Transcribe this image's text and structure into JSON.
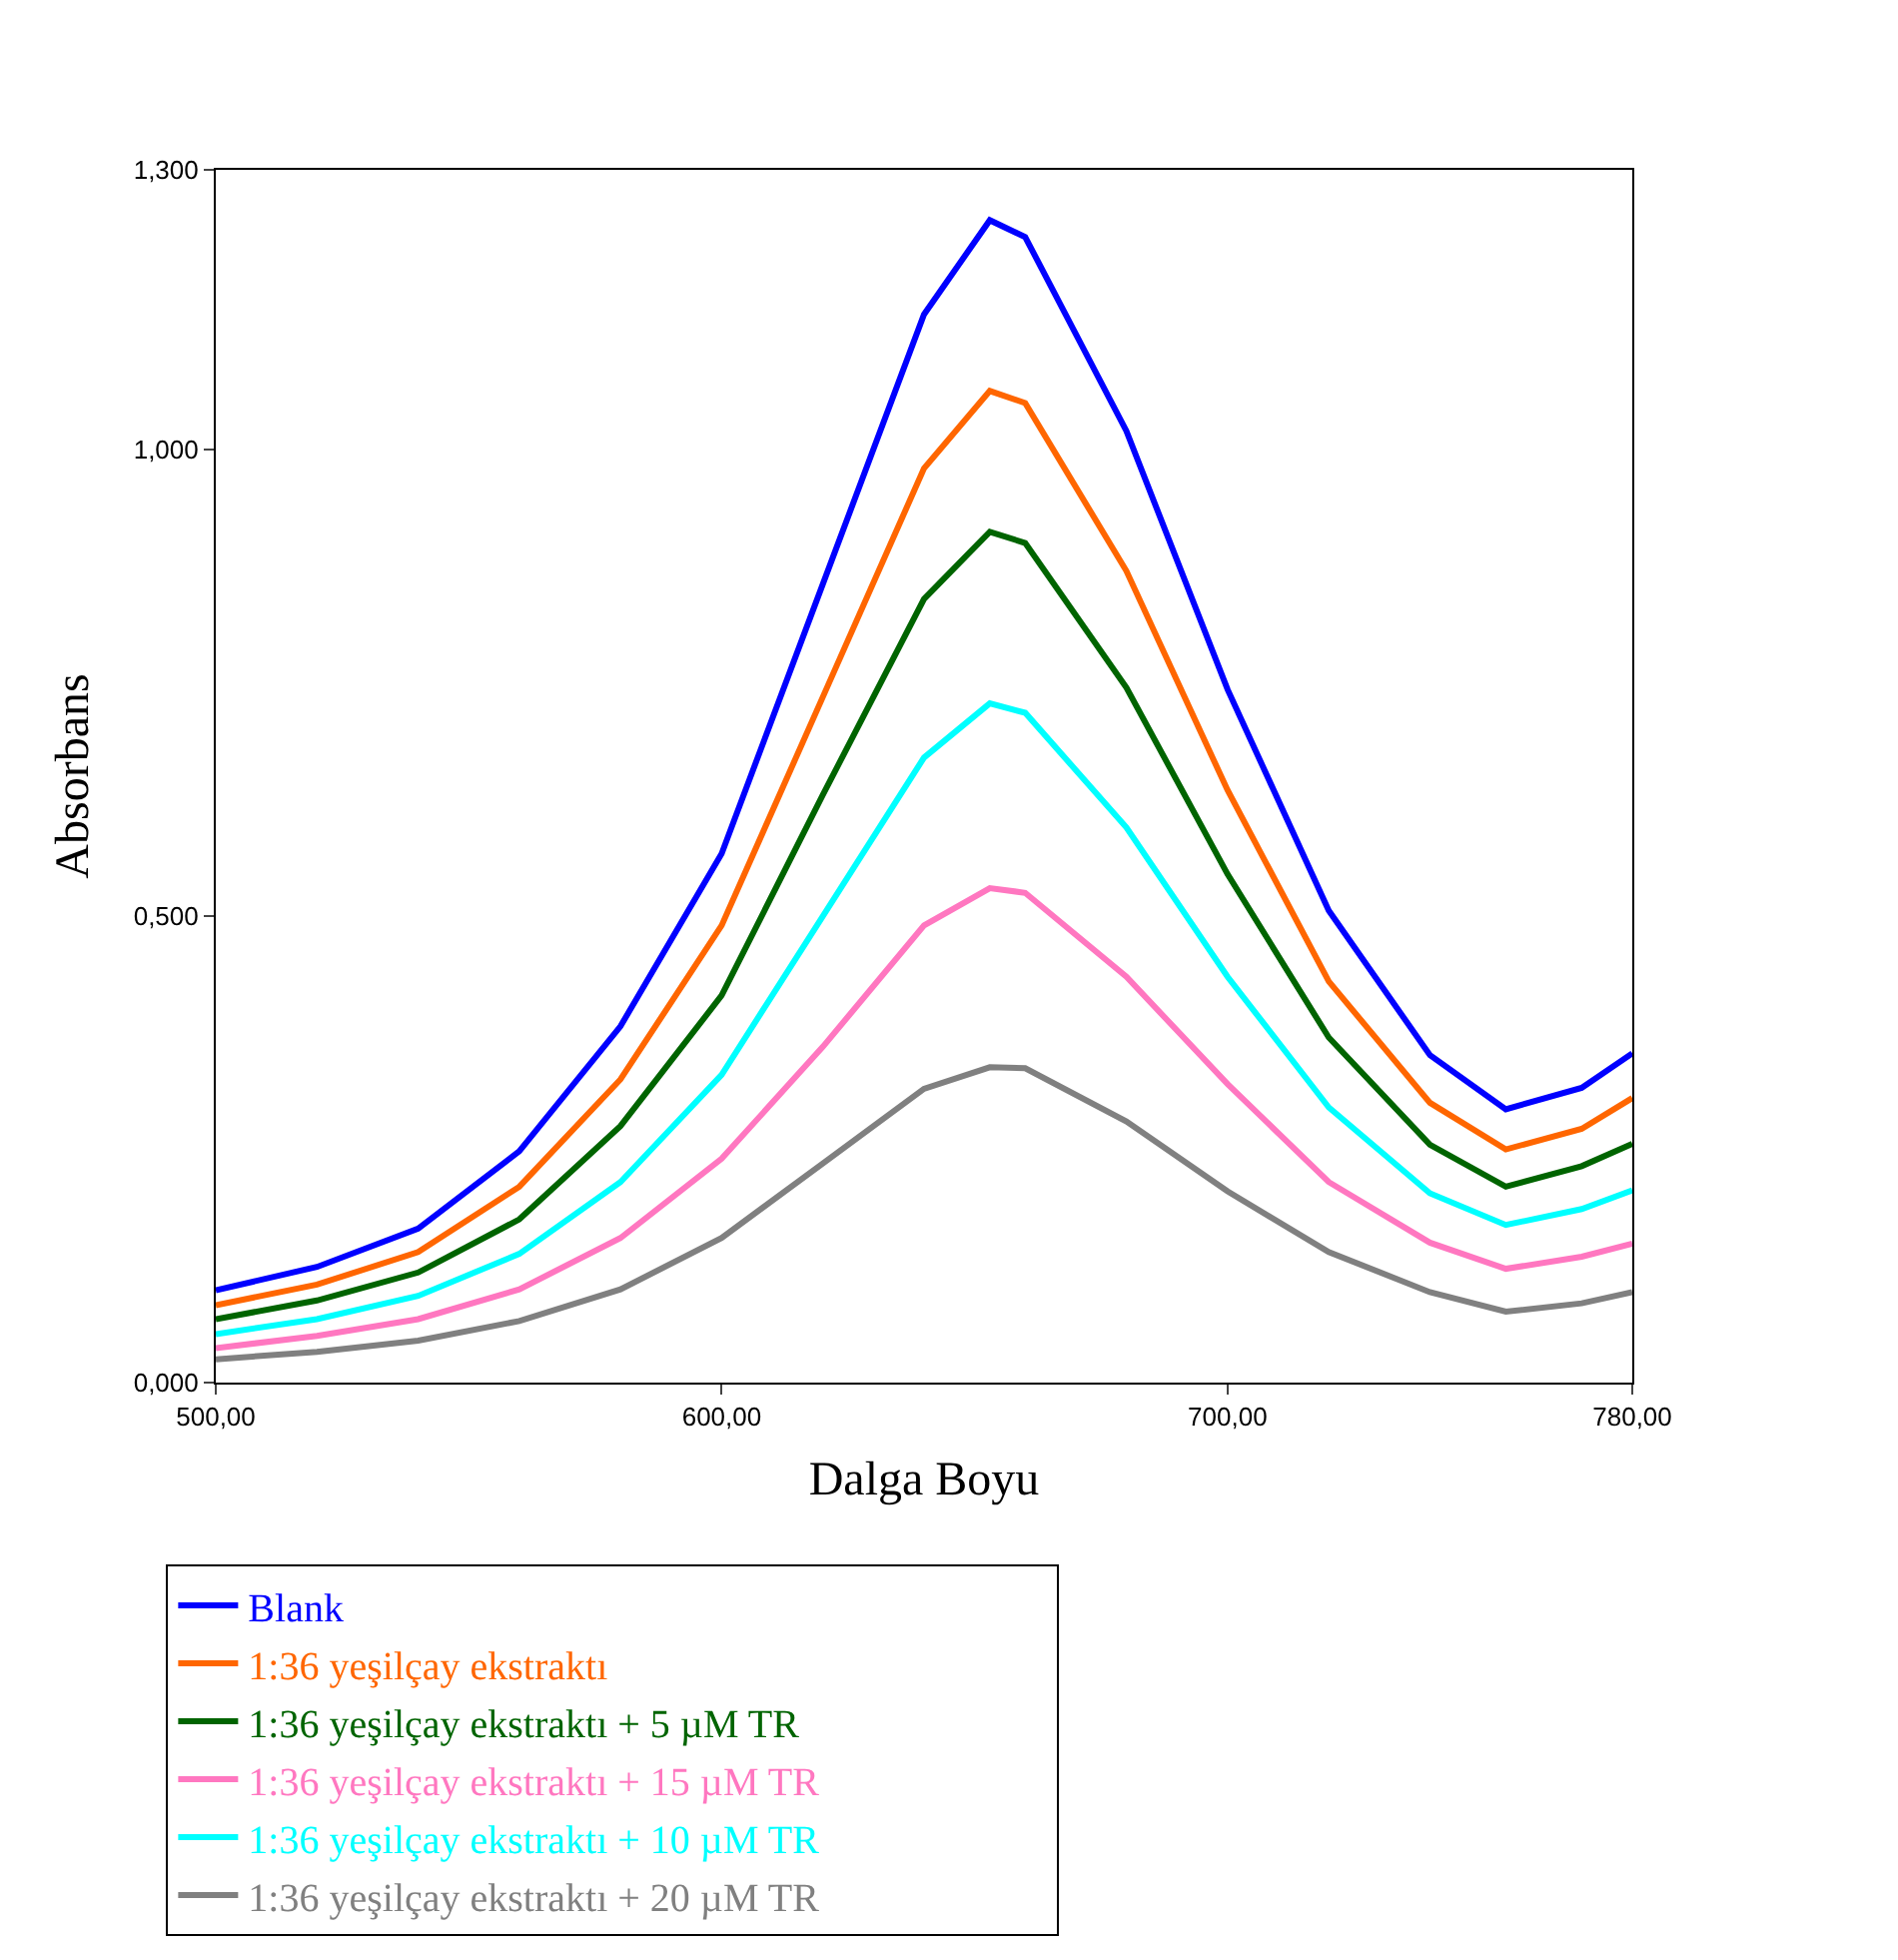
{
  "chart_data": {
    "type": "line",
    "xlabel": "Dalga Boyu",
    "ylabel": "Absorbans",
    "x": [
      500,
      520,
      540,
      560,
      580,
      600,
      620,
      640,
      653,
      660,
      680,
      700,
      720,
      740,
      755,
      770,
      780
    ],
    "xlim": [
      500,
      780
    ],
    "xticks": [
      {
        "value": 500,
        "label": "500,00"
      },
      {
        "value": 600,
        "label": "600,00"
      },
      {
        "value": 700,
        "label": "700,00"
      },
      {
        "value": 780,
        "label": "780,00"
      }
    ],
    "ylim": [
      0,
      1.3
    ],
    "yticks": [
      {
        "value": 0,
        "label": "0,000"
      },
      {
        "value": 0.5,
        "label": "0,500"
      },
      {
        "value": 1.0,
        "label": "1,000"
      },
      {
        "value": 1.3,
        "label": "1,300"
      }
    ],
    "grid": false,
    "legend": "bottom",
    "marker": "none",
    "line_style": "solid",
    "series": [
      {
        "name": "Blank",
        "color": "#0000ff",
        "values": [
          0.099,
          0.124,
          0.165,
          0.248,
          0.382,
          0.567,
          0.856,
          1.145,
          1.246,
          1.228,
          1.02,
          0.743,
          0.506,
          0.351,
          0.293,
          0.316,
          0.353
        ]
      },
      {
        "name": "1:36 yeşilçay ekstraktı",
        "color": "#ff6600",
        "values": [
          0.083,
          0.105,
          0.14,
          0.21,
          0.325,
          0.49,
          0.735,
          0.98,
          1.063,
          1.05,
          0.87,
          0.635,
          0.43,
          0.3,
          0.25,
          0.272,
          0.305
        ]
      },
      {
        "name": "1:36 yeşilçay ekstraktı + 5 µM TR",
        "color": "#006400",
        "values": [
          0.068,
          0.088,
          0.118,
          0.175,
          0.275,
          0.415,
          0.63,
          0.84,
          0.912,
          0.9,
          0.745,
          0.545,
          0.37,
          0.255,
          0.21,
          0.232,
          0.256
        ]
      },
      {
        "name": "1:36 yeşilçay ekstraktı + 15 µM TR",
        "color": "#ff77c0",
        "values": [
          0.037,
          0.05,
          0.068,
          0.1,
          0.155,
          0.24,
          0.36,
          0.49,
          0.53,
          0.525,
          0.435,
          0.32,
          0.215,
          0.15,
          0.122,
          0.135,
          0.149
        ]
      },
      {
        "name": "1:36 yeşilçay ekstraktı + 10 µM TR",
        "color": "#00ffff",
        "values": [
          0.052,
          0.068,
          0.093,
          0.138,
          0.215,
          0.33,
          0.5,
          0.67,
          0.728,
          0.718,
          0.595,
          0.435,
          0.295,
          0.203,
          0.169,
          0.186,
          0.206
        ]
      },
      {
        "name": "1:36 yeşilçay ekstraktı + 20 µM TR",
        "color": "#808080",
        "values": [
          0.025,
          0.033,
          0.045,
          0.066,
          0.1,
          0.155,
          0.235,
          0.315,
          0.338,
          0.337,
          0.28,
          0.205,
          0.14,
          0.097,
          0.076,
          0.085,
          0.097
        ]
      }
    ]
  }
}
